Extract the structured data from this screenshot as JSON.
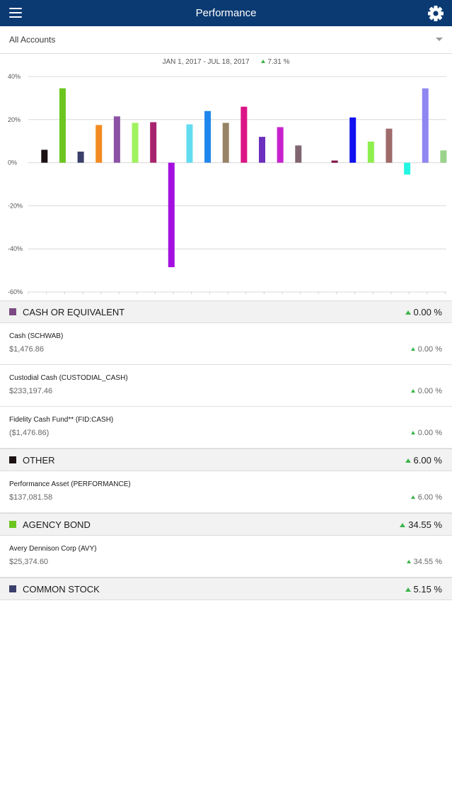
{
  "header": {
    "title": "Performance",
    "menu_icon": "hamburger-menu-icon",
    "settings_icon": "gear-icon"
  },
  "account_selector": {
    "label": "All Accounts"
  },
  "summary": {
    "date_range": "JAN 1, 2017 - JUL 18, 2017",
    "return_pct": "7.31 %",
    "trend_color": "#3bb54a"
  },
  "chart_data": {
    "type": "bar",
    "y_ticks": [
      "40%",
      "20%",
      "0%",
      "-20%",
      "-40%",
      "-60%"
    ],
    "ylim": [
      -60,
      40
    ],
    "grid": true,
    "values": [
      6,
      34.55,
      5.15,
      17.5,
      21.5,
      18.5,
      18.8,
      -48.5,
      17.8,
      24,
      18.5,
      26,
      12,
      16.5,
      8,
      null,
      1,
      21,
      9.8,
      15.8,
      -5.5,
      34.5,
      5.7
    ],
    "colors": [
      "#1c1213",
      "#6cc61f",
      "#3a3f6b",
      "#f38a22",
      "#8c51a5",
      "#a0f25f",
      "#a8236d",
      "#a40fe0",
      "#63dcf2",
      "#1f87ec",
      "#968466",
      "#db1585",
      "#6c2fbe",
      "#c721ce",
      "#806570",
      "#ffffff",
      "#7e1244",
      "#1010f0",
      "#8eee4e",
      "#9e6a6a",
      "#23f6e2",
      "#8f86f2",
      "#9bd38a"
    ]
  },
  "categories": [
    {
      "name": "CASH OR EQUIVALENT",
      "color": "#7c4a83",
      "pct": "0.00 %",
      "holdings": [
        {
          "name": "Cash (SCHWAB)",
          "value": "$1,476.86",
          "pct": "0.00 %"
        },
        {
          "name": "Custodial Cash (CUSTODIAL_CASH)",
          "value": "$233,197.46",
          "pct": "0.00 %"
        },
        {
          "name": "Fidelity Cash Fund** (FID:CASH)",
          "value": "($1,476.86)",
          "pct": "0.00 %"
        }
      ]
    },
    {
      "name": "OTHER",
      "color": "#1c1213",
      "pct": "6.00 %",
      "holdings": [
        {
          "name": "Performance Asset (PERFORMANCE)",
          "value": "$137,081.58",
          "pct": "6.00 %"
        }
      ]
    },
    {
      "name": "AGENCY BOND",
      "color": "#6cc61f",
      "pct": "34.55 %",
      "holdings": [
        {
          "name": "Avery Dennison Corp (AVY)",
          "value": "$25,374.60",
          "pct": "34.55 %"
        }
      ]
    },
    {
      "name": "COMMON STOCK",
      "color": "#3a3f6b",
      "pct": "5.15 %",
      "holdings": []
    }
  ]
}
